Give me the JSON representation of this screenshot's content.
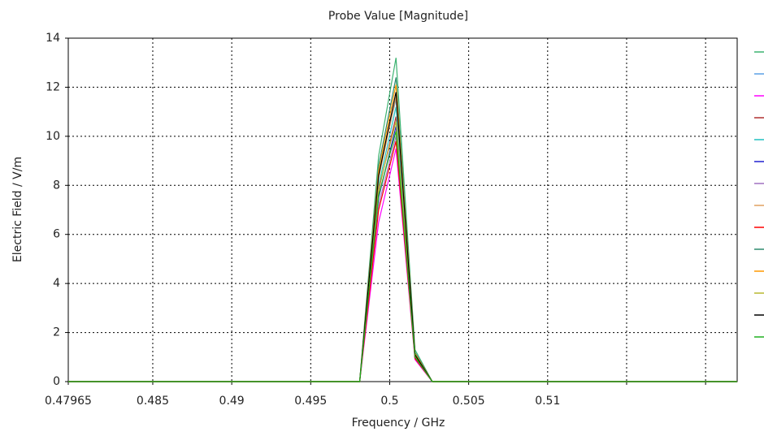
{
  "chart_data": {
    "type": "line",
    "title": "Probe Value [Magnitude]",
    "x_label": "Frequency / GHz",
    "y_label": "Electric Field / V/m",
    "x": [
      0.47965,
      0.4981,
      0.4993,
      0.5004,
      0.5016,
      0.5027,
      0.522
    ],
    "xlim": [
      0.47965,
      0.522
    ],
    "xticks": [
      0.47965,
      0.485,
      0.49,
      0.495,
      0.5,
      0.505,
      0.51,
      {
        "value": 0.515,
        "label": null
      },
      {
        "value": 0.52,
        "label": null
      }
    ],
    "ylim": [
      0,
      14
    ],
    "yticks": [
      0,
      2,
      4,
      6,
      8,
      10,
      12,
      14
    ],
    "grid": true,
    "legend": "right",
    "series": [
      {
        "color": "#3cb371",
        "values": [
          0,
          0,
          9.2,
          13.2,
          1.3,
          0,
          0
        ]
      },
      {
        "color": "#5aa0e6",
        "values": [
          0,
          0,
          8.5,
          11.5,
          1.1,
          0,
          0
        ]
      },
      {
        "color": "#ff00ff",
        "values": [
          0,
          0,
          6.5,
          9.5,
          0.9,
          0,
          0
        ]
      },
      {
        "color": "#b03030",
        "values": [
          0,
          0,
          7.8,
          10.8,
          1.0,
          0,
          0
        ]
      },
      {
        "color": "#20c0c0",
        "values": [
          0,
          0,
          8.0,
          11.2,
          1.1,
          0,
          0
        ]
      },
      {
        "color": "#2020d0",
        "values": [
          0,
          0,
          7.5,
          10.4,
          1.0,
          0,
          0
        ]
      },
      {
        "color": "#a070c0",
        "values": [
          0,
          0,
          7.2,
          10.0,
          1.0,
          0,
          0
        ]
      },
      {
        "color": "#e0a060",
        "values": [
          0,
          0,
          8.3,
          11.6,
          1.1,
          0,
          0
        ]
      },
      {
        "color": "#ff0000",
        "values": [
          0,
          0,
          7.0,
          9.8,
          0.95,
          0,
          0
        ]
      },
      {
        "color": "#2e8b6e",
        "values": [
          0,
          0,
          8.8,
          12.4,
          1.2,
          0,
          0
        ]
      },
      {
        "color": "#ff9900",
        "values": [
          0,
          0,
          8.6,
          12.1,
          1.15,
          0,
          0
        ]
      },
      {
        "color": "#b8b830",
        "values": [
          0,
          0,
          7.9,
          10.6,
          1.05,
          0,
          0
        ]
      },
      {
        "color": "#000000",
        "values": [
          0,
          0,
          8.4,
          11.8,
          1.1,
          0,
          0
        ]
      },
      {
        "color": "#20b020",
        "values": [
          0,
          0,
          7.6,
          10.2,
          1.0,
          0,
          0
        ]
      }
    ]
  }
}
